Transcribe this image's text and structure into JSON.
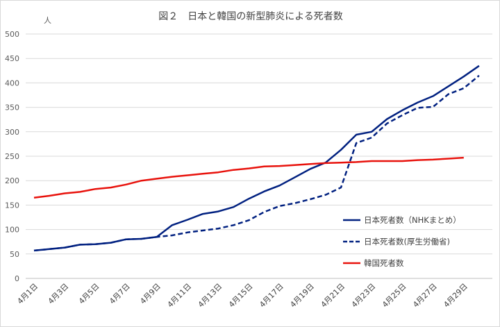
{
  "chart_data": {
    "type": "line",
    "title": "図２　日本と韓国の新型肺炎による死者数",
    "ylabel": "人",
    "ylim": [
      0,
      500
    ],
    "yticks": [
      0,
      50,
      100,
      150,
      200,
      250,
      300,
      350,
      400,
      450,
      500
    ],
    "grid": true,
    "legend_position": "right",
    "x": [
      "4月1日",
      "4月2日",
      "4月3日",
      "4月4日",
      "4月5日",
      "4月6日",
      "4月7日",
      "4月8日",
      "4月9日",
      "4月10日",
      "4月11日",
      "4月12日",
      "4月13日",
      "4月14日",
      "4月15日",
      "4月16日",
      "4月17日",
      "4月18日",
      "4月19日",
      "4月20日",
      "4月21日",
      "4月22日",
      "4月23日",
      "4月24日",
      "4月25日",
      "4月26日",
      "4月27日",
      "4月28日",
      "4月29日",
      "4月30日"
    ],
    "xtick_labels": [
      "4月1日",
      "4月3日",
      "4月5日",
      "4月7日",
      "4月9日",
      "4月11日",
      "4月13日",
      "4月15日",
      "4月17日",
      "4月19日",
      "4月21日",
      "4月23日",
      "4月25日",
      "4月27日",
      "4月29日"
    ],
    "series": [
      {
        "name": "日本死者数（NHKまとめ）",
        "color": "#002080",
        "style": "solid",
        "values": [
          57,
          60,
          63,
          69,
          70,
          73,
          80,
          81,
          85,
          109,
          120,
          132,
          137,
          146,
          163,
          178,
          190,
          207,
          224,
          237,
          263,
          294,
          300,
          326,
          344,
          360,
          373,
          393,
          413,
          435
        ]
      },
      {
        "name": "日本死者数(厚生労働省)",
        "color": "#002080",
        "style": "dashed",
        "values": [
          57,
          60,
          63,
          69,
          70,
          73,
          80,
          81,
          85,
          88,
          94,
          98,
          102,
          109,
          119,
          136,
          148,
          154,
          162,
          171,
          186,
          277,
          288,
          317,
          334,
          349,
          351,
          377,
          389,
          415
        ]
      },
      {
        "name": "韓国死者数",
        "color": "#e8120c",
        "style": "solid",
        "values": [
          165,
          169,
          174,
          177,
          183,
          186,
          192,
          200,
          204,
          208,
          211,
          214,
          217,
          222,
          225,
          229,
          230,
          232,
          234,
          236,
          237,
          238,
          240,
          240,
          240,
          242,
          243,
          245,
          247,
          null
        ]
      }
    ]
  }
}
